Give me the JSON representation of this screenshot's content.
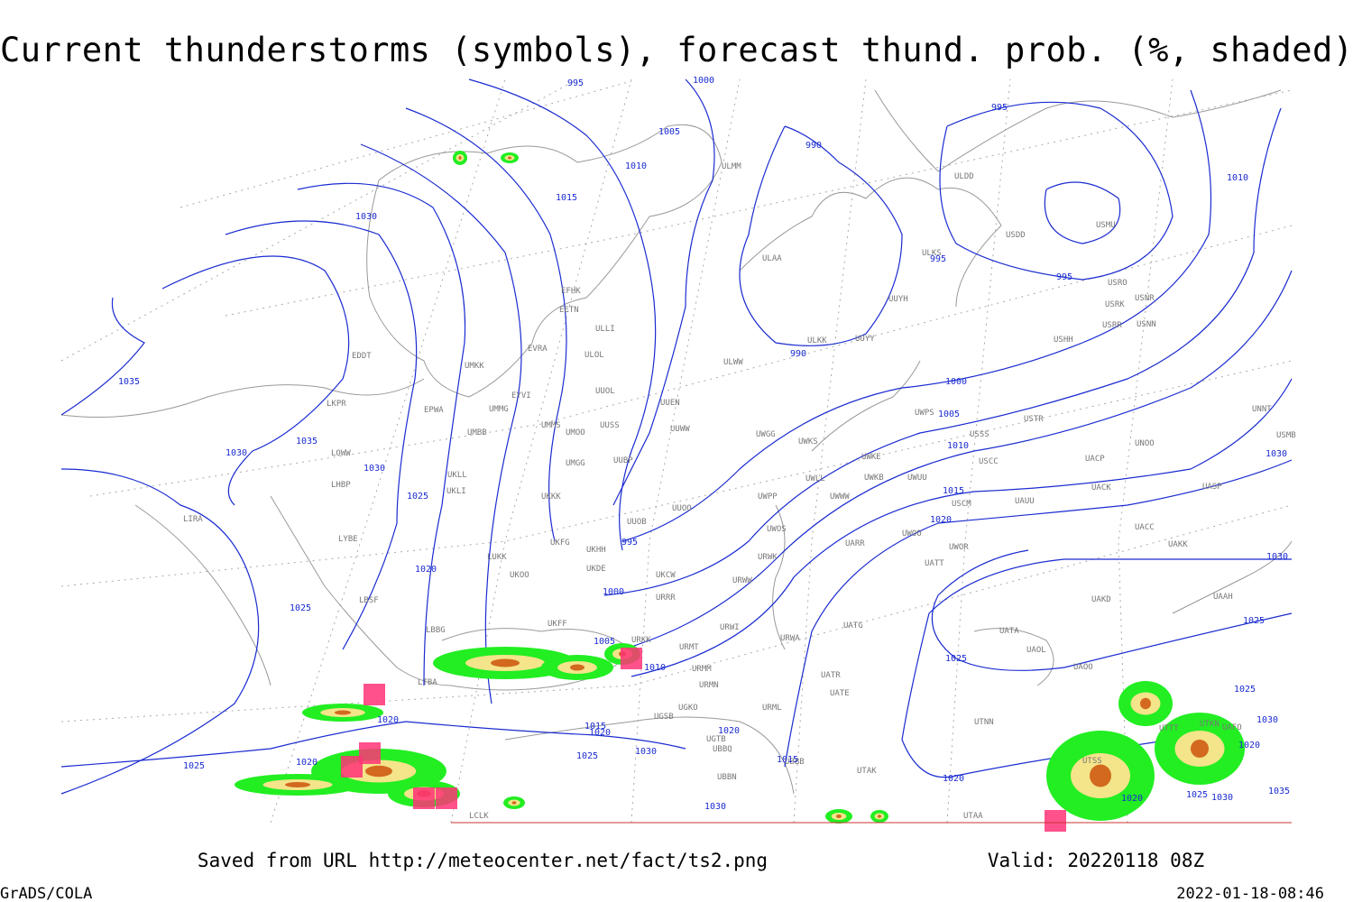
{
  "header": {
    "title": "Current thunderstorms (symbols), forecast thund. prob. (%, shaded)"
  },
  "footer": {
    "source": "Saved from URL http://meteocenter.net/fact/ts2.png",
    "valid": "Valid: 20220118 08Z",
    "software": "GrADS/COLA",
    "timestamp": "2022-01-18-08:46"
  },
  "map": {
    "stations": [
      "ULMM",
      "ULDD",
      "USMU",
      "USDD",
      "ULKS",
      "ULAA",
      "EFHK",
      "EETN",
      "UUYH",
      "USRO",
      "USRK",
      "USNR",
      "USRR",
      "USNN",
      "USHH",
      "ULLI",
      "EVRA",
      "ULOL",
      "ULKK",
      "UUYY",
      "ULWW",
      "EDDT",
      "UMKK",
      "EYVI",
      "UUOL",
      "UUEN",
      "LKPR",
      "EPWA",
      "UMMG",
      "UMMS",
      "UMOO",
      "UUSS",
      "UUWW",
      "UWGG",
      "UWKS",
      "UNNT",
      "USMB",
      "USTR",
      "UWPS",
      "USSS",
      "UNOO",
      "UMBB",
      "LOWW",
      "UWKE",
      "UUBP",
      "UMGG",
      "USCC",
      "UACP",
      "UWKB",
      "UWUU",
      "UWLL",
      "UKLL",
      "LHBP",
      "UKLI",
      "UWWW",
      "UWPP",
      "USCM",
      "UAUU",
      "UACK",
      "UASP",
      "UKKK",
      "UUOO",
      "LIRA",
      "UUOB",
      "UACC",
      "UAKK",
      "LYBE",
      "UKHH",
      "UKFG",
      "UWOS",
      "UARR",
      "UWOO",
      "UWOR",
      "URWK",
      "UATT",
      "LUKK",
      "UKDE",
      "UKOO",
      "UKCW",
      "URWW",
      "LBSF",
      "URRR",
      "UAKD",
      "UAAH",
      "UKFF",
      "UATG",
      "URWI",
      "LBBG",
      "UATA",
      "URKK",
      "URMT",
      "URWA",
      "UAOL",
      "UAOO",
      "URMM",
      "UATR",
      "URMN",
      "LTBA",
      "UATE",
      "UGKO",
      "URML",
      "UTNN",
      "UGSB",
      "UGTB",
      "UBBQ",
      "UBBN",
      "UBBB",
      "UTAK",
      "LCLK",
      "UTAA",
      "UTSS",
      "UTTT",
      "UTKN",
      "UAFO"
    ],
    "isobar_labels": [
      995,
      1000,
      1005,
      1010,
      1015,
      1030,
      990,
      995,
      1010,
      995,
      995,
      990,
      1035,
      1000,
      1005,
      1010,
      1035,
      1030,
      1030,
      1025,
      1015,
      1020,
      995,
      1030,
      1020,
      1030,
      1000,
      1025,
      1025,
      1005,
      1010,
      1025,
      1025,
      1020,
      1015,
      1020,
      1030,
      1020,
      1030,
      1020,
      1020,
      1025,
      1015,
      1025,
      1020,
      1030,
      1020,
      1025,
      1030,
      1035
    ]
  }
}
